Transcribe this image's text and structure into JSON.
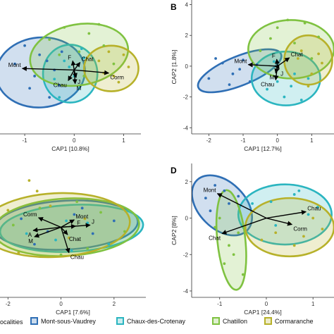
{
  "colors": {
    "Mont-sous-Vaudrey": "#2f6fb5",
    "Chaux-des-Crotenay": "#2bb5c0",
    "Chatillon": "#7fc241",
    "Cormaranche": "#b7b12a"
  },
  "legend": {
    "title": "ocalities",
    "items": [
      "Mont-sous-Vaudrey",
      "Chaux-des-Crotenay",
      "Chatillon",
      "Cormaranche"
    ]
  },
  "chart_data": [
    {
      "panel": "A",
      "panel_label": "",
      "type": "scatter",
      "xlabel": "CAP1 [10.8%]",
      "ylabel": "",
      "xlim": [
        -1.5,
        1.35
      ],
      "ylim": [
        -2.1,
        2.3
      ],
      "xticks": [
        -1,
        0,
        1
      ],
      "yticks": [],
      "series": [
        {
          "locality": "Mont-sous-Vaudrey",
          "ellipse": {
            "cx": -0.68,
            "cy": -0.08,
            "rx": 0.9,
            "ry": 1.15,
            "angle": -5
          },
          "points": [
            [
              -1.2,
              0.2
            ],
            [
              -0.9,
              -0.6
            ],
            [
              -0.7,
              0.5
            ],
            [
              -0.4,
              0.0
            ],
            [
              -0.5,
              -0.9
            ],
            [
              -0.25,
              0.6
            ],
            [
              -0.8,
              -0.2
            ],
            [
              -0.55,
              0.3
            ],
            [
              -0.3,
              -0.5
            ],
            [
              -1.0,
              0.8
            ]
          ]
        },
        {
          "locality": "Chaux-des-Crotenay",
          "ellipse": {
            "cx": -0.08,
            "cy": -0.12,
            "rx": 0.55,
            "ry": 0.95,
            "angle": 0
          },
          "points": [
            [
              -0.4,
              -0.3
            ],
            [
              -0.1,
              0.1
            ],
            [
              0.1,
              -0.6
            ],
            [
              0.2,
              0.4
            ],
            [
              -0.3,
              -0.9
            ],
            [
              0.0,
              -0.2
            ],
            [
              0.15,
              0.7
            ],
            [
              -0.2,
              0.3
            ]
          ]
        },
        {
          "locality": "Chatillon",
          "ellipse": {
            "cx": 0.1,
            "cy": 0.5,
            "rx": 1.0,
            "ry": 1.0,
            "angle": -10
          },
          "points": [
            [
              -0.5,
              1.0
            ],
            [
              0.3,
              1.2
            ],
            [
              0.6,
              0.8
            ],
            [
              -0.2,
              1.4
            ],
            [
              0.1,
              0.6
            ],
            [
              0.5,
              1.5
            ],
            [
              -0.3,
              0.5
            ],
            [
              0.8,
              0.2
            ],
            [
              0.2,
              -0.2
            ]
          ]
        },
        {
          "locality": "Cormaranche",
          "ellipse": {
            "cx": 0.75,
            "cy": 0.05,
            "rx": 0.55,
            "ry": 0.75,
            "angle": 0
          },
          "points": [
            [
              0.5,
              0.3
            ],
            [
              0.8,
              -0.2
            ],
            [
              1.0,
              0.5
            ],
            [
              0.7,
              0.6
            ],
            [
              0.9,
              -0.4
            ],
            [
              1.1,
              0.1
            ],
            [
              0.6,
              -0.1
            ]
          ]
        }
      ],
      "vectors": [
        {
          "label": "Mont",
          "x": -1.05,
          "y": 0.05
        },
        {
          "label": "Corm",
          "x": 0.7,
          "y": -0.1
        },
        {
          "label": "F",
          "x": -0.03,
          "y": 0.3
        },
        {
          "label": "Chat",
          "x": 0.12,
          "y": 0.25
        },
        {
          "label": "J",
          "x": 0.04,
          "y": -0.25
        },
        {
          "label": "M",
          "x": 0.02,
          "y": -0.45
        },
        {
          "label": "Chau",
          "x": -0.12,
          "y": -0.35
        }
      ]
    },
    {
      "panel": "B",
      "panel_label": "B",
      "type": "scatter",
      "xlabel": "CAP1 [12.7%]",
      "ylabel": "CAP2  [1.8%]",
      "xlim": [
        -2.5,
        1.65
      ],
      "ylim": [
        -4.4,
        4.3
      ],
      "xticks": [
        -2,
        -1,
        0,
        1
      ],
      "yticks": [
        -4,
        -2,
        0,
        2,
        4
      ],
      "series": [
        {
          "locality": "Mont-sous-Vaudrey",
          "ellipse": {
            "cx": -1.1,
            "cy": -0.3,
            "rx": 1.3,
            "ry": 0.95,
            "angle": -22
          },
          "points": [
            [
              -2.0,
              -0.8
            ],
            [
              -1.6,
              0.2
            ],
            [
              -1.3,
              -0.5
            ],
            [
              -1.0,
              0.4
            ],
            [
              -0.8,
              -1.0
            ],
            [
              -1.4,
              -1.2
            ],
            [
              -0.6,
              0.1
            ],
            [
              -1.8,
              0.5
            ],
            [
              -1.1,
              -0.2
            ]
          ]
        },
        {
          "locality": "Chaux-des-Crotenay",
          "ellipse": {
            "cx": 0.25,
            "cy": -0.8,
            "rx": 1.0,
            "ry": 1.75,
            "angle": 0
          },
          "points": [
            [
              -0.3,
              -1.5
            ],
            [
              0.2,
              -2.0
            ],
            [
              0.5,
              -0.5
            ],
            [
              0.0,
              -1.0
            ],
            [
              0.7,
              -2.2
            ],
            [
              -0.1,
              0.3
            ],
            [
              0.4,
              -1.3
            ],
            [
              0.9,
              -0.8
            ]
          ]
        },
        {
          "locality": "Chatillon",
          "ellipse": {
            "cx": 0.4,
            "cy": 1.1,
            "rx": 1.25,
            "ry": 1.9,
            "angle": 0
          },
          "points": [
            [
              0.0,
              2.5
            ],
            [
              0.5,
              1.5
            ],
            [
              -0.5,
              1.0
            ],
            [
              0.8,
              2.8
            ],
            [
              1.0,
              0.5
            ],
            [
              0.3,
              3.0
            ],
            [
              -0.2,
              1.8
            ],
            [
              1.2,
              1.9
            ]
          ]
        },
        {
          "locality": "Cormaranche",
          "ellipse": {
            "cx": 0.9,
            "cy": 0.4,
            "rx": 0.7,
            "ry": 1.6,
            "angle": 0
          },
          "points": [
            [
              0.7,
              1.0
            ],
            [
              1.0,
              -0.5
            ],
            [
              1.2,
              0.8
            ],
            [
              0.9,
              -1.3
            ],
            [
              1.3,
              0.2
            ],
            [
              0.6,
              0.5
            ]
          ]
        }
      ],
      "vectors": [
        {
          "label": "Mont",
          "x": -0.85,
          "y": 0.1
        },
        {
          "label": "Chat",
          "x": 0.35,
          "y": 0.55
        },
        {
          "label": "F",
          "x": -0.02,
          "y": 0.45
        },
        {
          "label": "J",
          "x": 0.05,
          "y": -0.2
        },
        {
          "label": "M",
          "x": -0.05,
          "y": -0.45
        },
        {
          "label": "Chau",
          "x": -0.05,
          "y": -0.9
        }
      ]
    },
    {
      "panel": "C",
      "panel_label": "",
      "type": "scatter",
      "xlabel": "CAP1 [7.6%]",
      "ylabel": "",
      "xlim": [
        -2.3,
        3.2
      ],
      "ylim": [
        -3.3,
        3.0
      ],
      "xticks": [
        -2,
        0,
        2
      ],
      "yticks": [],
      "series": [
        {
          "locality": "Mont-sous-Vaudrey",
          "ellipse": {
            "cx": 0.2,
            "cy": 0.1,
            "rx": 2.7,
            "ry": 1.15,
            "angle": -3
          },
          "points": [
            [
              -1.5,
              0.4
            ],
            [
              -0.5,
              -0.2
            ],
            [
              0.5,
              0.6
            ],
            [
              1.2,
              -0.3
            ],
            [
              2.0,
              0.3
            ],
            [
              -1.0,
              -0.8
            ],
            [
              0.8,
              0.9
            ]
          ]
        },
        {
          "locality": "Chaux-des-Crotenay",
          "ellipse": {
            "cx": 0.4,
            "cy": -0.05,
            "rx": 2.7,
            "ry": 1.1,
            "angle": -3
          },
          "points": [
            [
              -0.2,
              -0.6
            ],
            [
              0.4,
              -1.1
            ],
            [
              1.0,
              0.2
            ],
            [
              -1.3,
              -0.3
            ],
            [
              1.8,
              -0.8
            ],
            [
              0.2,
              0.3
            ]
          ]
        },
        {
          "locality": "Chatillon",
          "ellipse": {
            "cx": 0.2,
            "cy": 0.0,
            "rx": 2.75,
            "ry": 1.35,
            "angle": -3
          },
          "points": [
            [
              -0.8,
              0.9
            ],
            [
              0.6,
              1.2
            ],
            [
              1.5,
              0.7
            ],
            [
              -1.8,
              0.1
            ],
            [
              2.4,
              -0.2
            ],
            [
              0.0,
              -1.3
            ],
            [
              1.0,
              -1.0
            ]
          ]
        },
        {
          "locality": "Cormaranche",
          "ellipse": {
            "cx": -0.2,
            "cy": 0.1,
            "rx": 2.8,
            "ry": 1.5,
            "angle": -3
          },
          "points": [
            [
              -1.2,
              2.2
            ],
            [
              -0.4,
              1.0
            ],
            [
              -2.0,
              0.8
            ],
            [
              0.3,
              -0.5
            ],
            [
              -1.6,
              -1.2
            ],
            [
              0.9,
              0.4
            ],
            [
              -0.9,
              1.7
            ]
          ]
        }
      ],
      "vectors": [
        {
          "label": "Corm",
          "x": -0.85,
          "y": 0.45
        },
        {
          "label": "Mont",
          "x": 0.5,
          "y": 0.35
        },
        {
          "label": "F",
          "x": 0.55,
          "y": 0.05
        },
        {
          "label": "J",
          "x": 1.1,
          "y": 0.1
        },
        {
          "label": "A",
          "x": -1.05,
          "y": -0.15
        },
        {
          "label": "M",
          "x": -1.0,
          "y": -0.45
        },
        {
          "label": "Chat",
          "x": 0.25,
          "y": -0.35
        },
        {
          "label": "Chau",
          "x": 0.3,
          "y": -1.2
        }
      ]
    },
    {
      "panel": "D",
      "panel_label": "D",
      "type": "scatter",
      "xlabel": "CAP1 [24.4%]",
      "ylabel": "CAP2  [8%]",
      "xlim": [
        -1.6,
        1.45
      ],
      "ylim": [
        -4.35,
        3.0
      ],
      "xticks": [
        -1,
        0,
        1
      ],
      "yticks": [
        -4,
        -2,
        0,
        2
      ],
      "series": [
        {
          "locality": "Mont-sous-Vaudrey",
          "ellipse": {
            "cx": -0.95,
            "cy": 0.7,
            "rx": 0.5,
            "ry": 1.95,
            "angle": -45
          },
          "points": [
            [
              -1.1,
              1.8
            ],
            [
              -0.8,
              0.8
            ],
            [
              -1.2,
              0.4
            ],
            [
              -0.6,
              1.2
            ],
            [
              -0.9,
              1.5
            ],
            [
              -1.3,
              1.1
            ]
          ]
        },
        {
          "locality": "Chaux-des-Crotenay",
          "ellipse": {
            "cx": 0.4,
            "cy": 0.2,
            "rx": 1.0,
            "ry": 1.65,
            "angle": 0
          },
          "points": [
            [
              0.1,
              0.9
            ],
            [
              0.6,
              1.3
            ],
            [
              -0.3,
              0.8
            ],
            [
              0.9,
              0.2
            ],
            [
              0.2,
              -0.4
            ],
            [
              0.7,
              1.5
            ],
            [
              1.1,
              0.6
            ]
          ]
        },
        {
          "locality": "Chatillon",
          "ellipse": {
            "cx": -0.75,
            "cy": -1.2,
            "rx": 0.3,
            "ry": 2.75,
            "angle": -6
          },
          "points": [
            [
              -1.0,
              0.0
            ],
            [
              -0.8,
              -1.5
            ],
            [
              -0.6,
              -0.8
            ],
            [
              -0.9,
              -2.5
            ],
            [
              -0.5,
              -3.1
            ],
            [
              -1.1,
              -0.5
            ],
            [
              -0.7,
              -2.0
            ]
          ]
        },
        {
          "locality": "Cormaranche",
          "ellipse": {
            "cx": 0.5,
            "cy": -0.5,
            "rx": 0.95,
            "ry": 1.6,
            "angle": 0
          },
          "points": [
            [
              0.2,
              -0.8
            ],
            [
              0.8,
              -1.0
            ],
            [
              0.5,
              -0.3
            ],
            [
              1.0,
              0.0
            ],
            [
              -0.1,
              -1.2
            ],
            [
              0.6,
              -1.5
            ],
            [
              1.2,
              -0.6
            ]
          ]
        }
      ],
      "vectors": [
        {
          "label": "Mont",
          "x": -1.05,
          "y": 1.35
        },
        {
          "label": "Chau",
          "x": 0.85,
          "y": 0.35
        },
        {
          "label": "Corm",
          "x": 0.55,
          "y": -0.35
        },
        {
          "label": "Chat",
          "x": -0.95,
          "y": -0.85
        }
      ]
    }
  ]
}
